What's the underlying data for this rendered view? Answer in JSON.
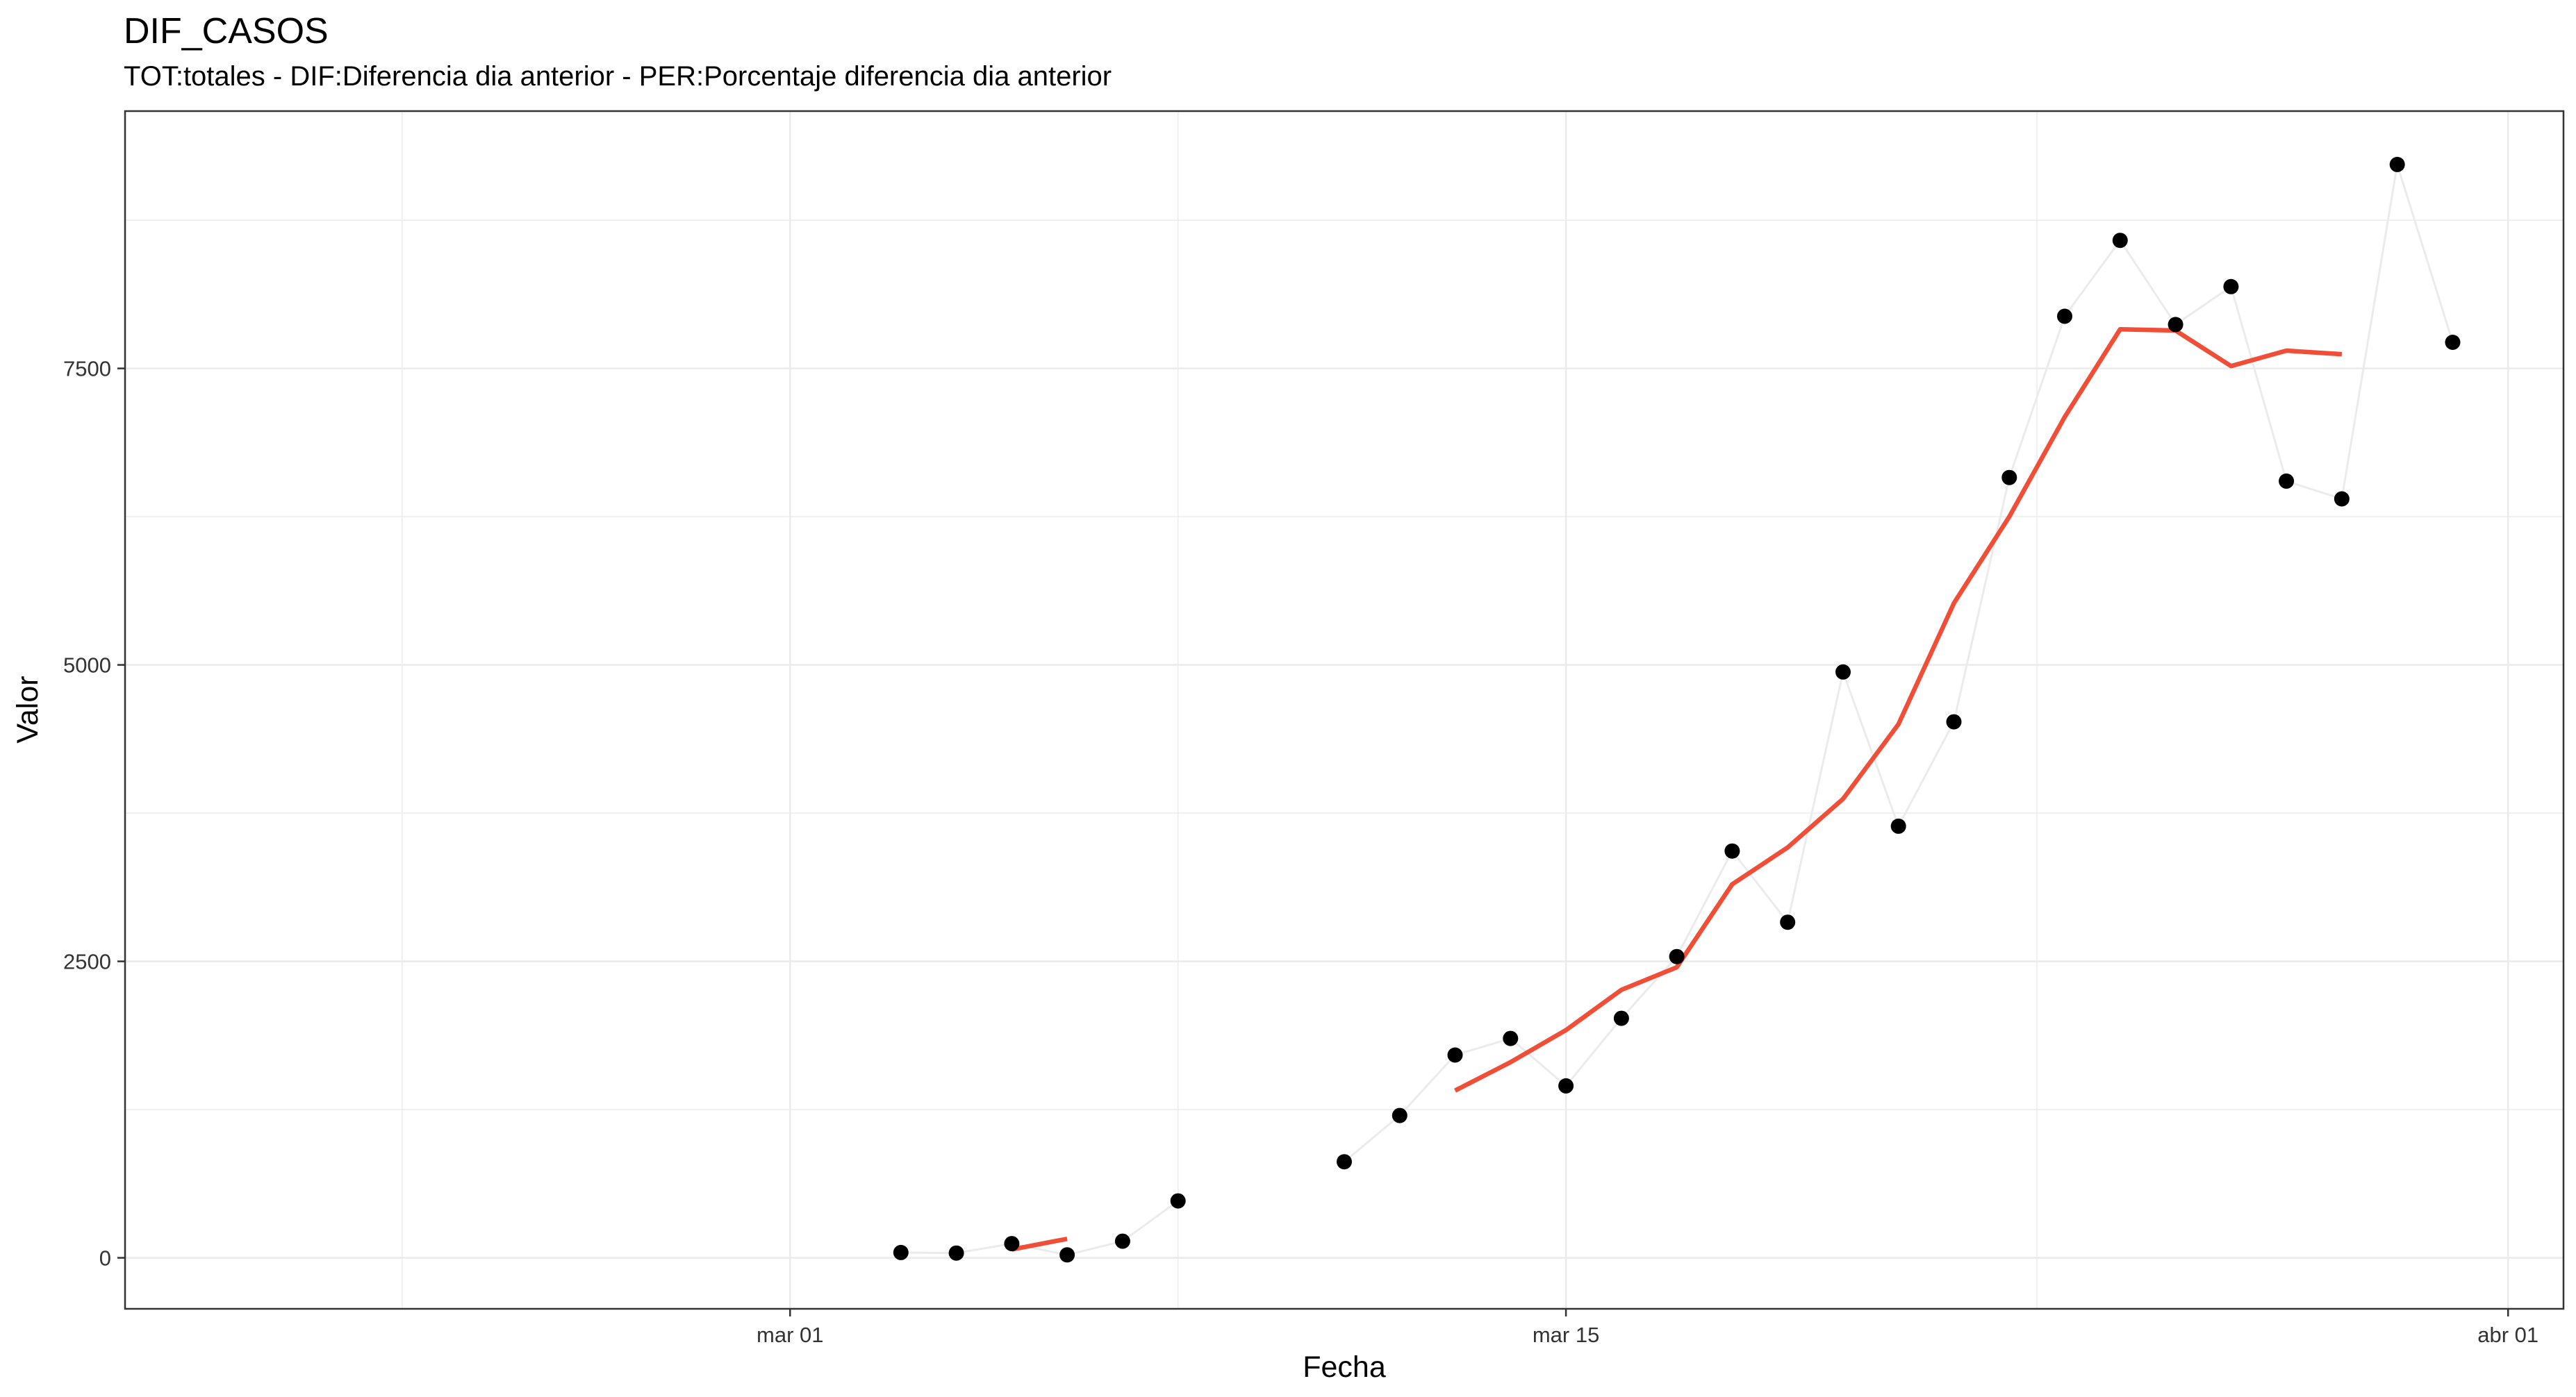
{
  "chart_data": {
    "type": "line",
    "title": "DIF_CASOS",
    "subtitle": "TOT:totales - DIF:Diferencia dia anterior - PER:Porcentaje diferencia dia anterior",
    "xlabel": "Fecha",
    "ylabel": "Valor",
    "x_ticks": [
      {
        "date": "2020-03-01",
        "label": "mar 01"
      },
      {
        "date": "2020-03-15",
        "label": "mar 15"
      },
      {
        "date": "2020-04-01",
        "label": "abr 01"
      }
    ],
    "y_ticks": [
      0,
      2500,
      5000,
      7500
    ],
    "xlim": [
      "2020-02-18",
      "2020-04-02"
    ],
    "ylim": [
      -430,
      9670
    ],
    "grid": true,
    "series": [
      {
        "kind": "points-with-line",
        "color": "#000000",
        "line_color": "#EBEBEB",
        "segments": [
          [
            {
              "x": "2020-03-03",
              "y": 45
            },
            {
              "x": "2020-03-04",
              "y": 40
            },
            {
              "x": "2020-03-05",
              "y": 120
            },
            {
              "x": "2020-03-06",
              "y": 25
            },
            {
              "x": "2020-03-07",
              "y": 140
            },
            {
              "x": "2020-03-08",
              "y": 480
            }
          ],
          [
            {
              "x": "2020-03-11",
              "y": 810
            },
            {
              "x": "2020-03-12",
              "y": 1200
            },
            {
              "x": "2020-03-13",
              "y": 1710
            },
            {
              "x": "2020-03-14",
              "y": 1850
            },
            {
              "x": "2020-03-15",
              "y": 1450
            },
            {
              "x": "2020-03-16",
              "y": 2020
            },
            {
              "x": "2020-03-17",
              "y": 2540
            },
            {
              "x": "2020-03-18",
              "y": 3430
            },
            {
              "x": "2020-03-19",
              "y": 2830
            },
            {
              "x": "2020-03-20",
              "y": 4940
            },
            {
              "x": "2020-03-21",
              "y": 3640
            },
            {
              "x": "2020-03-22",
              "y": 4520
            },
            {
              "x": "2020-03-23",
              "y": 6580
            },
            {
              "x": "2020-03-24",
              "y": 7940
            },
            {
              "x": "2020-03-25",
              "y": 8580
            },
            {
              "x": "2020-03-26",
              "y": 7870
            },
            {
              "x": "2020-03-27",
              "y": 8190
            },
            {
              "x": "2020-03-28",
              "y": 6550
            },
            {
              "x": "2020-03-29",
              "y": 6400
            },
            {
              "x": "2020-03-30",
              "y": 9220
            },
            {
              "x": "2020-03-31",
              "y": 7720
            }
          ]
        ]
      },
      {
        "kind": "smooth-line",
        "color": "#F04E37",
        "segments": [
          [
            {
              "x": "2020-03-05",
              "y": 70
            },
            {
              "x": "2020-03-06",
              "y": 160
            }
          ],
          [
            {
              "x": "2020-03-13",
              "y": 1410
            },
            {
              "x": "2020-03-14",
              "y": 1650
            },
            {
              "x": "2020-03-15",
              "y": 1920
            },
            {
              "x": "2020-03-16",
              "y": 2260
            },
            {
              "x": "2020-03-17",
              "y": 2450
            },
            {
              "x": "2020-03-18",
              "y": 3150
            },
            {
              "x": "2020-03-19",
              "y": 3460
            },
            {
              "x": "2020-03-20",
              "y": 3870
            },
            {
              "x": "2020-03-21",
              "y": 4500
            },
            {
              "x": "2020-03-22",
              "y": 5520
            },
            {
              "x": "2020-03-23",
              "y": 6250
            },
            {
              "x": "2020-03-24",
              "y": 7090
            },
            {
              "x": "2020-03-25",
              "y": 7830
            },
            {
              "x": "2020-03-26",
              "y": 7820
            },
            {
              "x": "2020-03-27",
              "y": 7520
            },
            {
              "x": "2020-03-28",
              "y": 7650
            },
            {
              "x": "2020-03-29",
              "y": 7620
            }
          ]
        ]
      }
    ]
  }
}
